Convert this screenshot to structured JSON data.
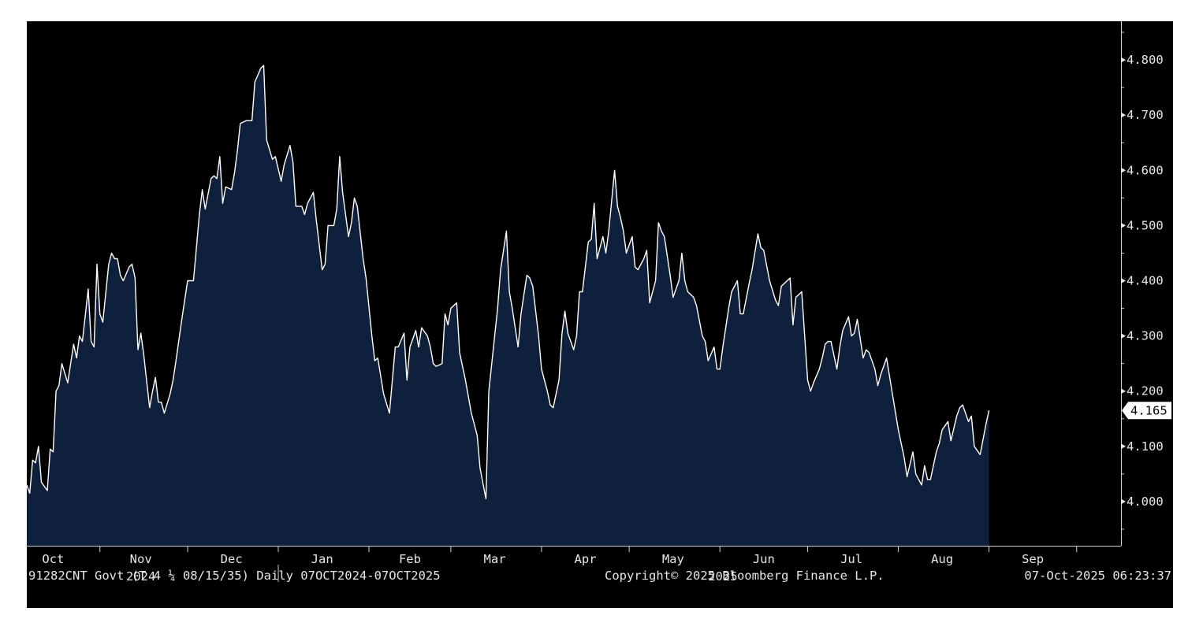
{
  "colors": {
    "background": "#000000",
    "area_fill": "#0f203c",
    "line": "#ffffff",
    "text": "#e6e6e6",
    "marker_bg": "#ffffff",
    "marker_text": "#000000"
  },
  "footer": {
    "security": "91282CNT Govt (T 4 ¼ 08/15/35) Daily 07OCT2024-07OCT2025",
    "copyright": "Copyright© 2025 Bloomberg Finance L.P.",
    "timestamp": "07-Oct-2025 06:23:37"
  },
  "chart_data": {
    "type": "area",
    "title": "",
    "xlabel": "",
    "ylabel": "",
    "ylim": [
      3.92,
      4.87
    ],
    "y_ticks": [
      "4.000",
      "4.100",
      "4.200",
      "4.300",
      "4.400",
      "4.500",
      "4.600",
      "4.700",
      "4.800"
    ],
    "y_tick_values": [
      4.0,
      4.1,
      4.2,
      4.3,
      4.4,
      4.5,
      4.6,
      4.7,
      4.8
    ],
    "x_start": "2024-10-07",
    "x_end": "2025-10-07",
    "month_labels": [
      {
        "label": "Oct",
        "date": "2024-10-16"
      },
      {
        "label": "Nov",
        "date": "2024-11-15"
      },
      {
        "label": "Dec",
        "date": "2024-12-16"
      },
      {
        "label": "Jan",
        "date": "2025-01-16"
      },
      {
        "label": "Feb",
        "date": "2025-02-15"
      },
      {
        "label": "Mar",
        "date": "2025-03-16"
      },
      {
        "label": "Apr",
        "date": "2025-04-16"
      },
      {
        "label": "May",
        "date": "2025-05-16"
      },
      {
        "label": "Jun",
        "date": "2025-06-16"
      },
      {
        "label": "Jul",
        "date": "2025-07-16"
      },
      {
        "label": "Aug",
        "date": "2025-08-16"
      },
      {
        "label": "Sep",
        "date": "2025-09-16"
      }
    ],
    "month_separators": [
      "2024-11-01",
      "2024-12-01",
      "2025-01-01",
      "2025-02-01",
      "2025-03-01",
      "2025-04-01",
      "2025-05-01",
      "2025-06-01",
      "2025-07-01",
      "2025-08-01",
      "2025-09-01",
      "2025-10-01"
    ],
    "year_labels": [
      {
        "label": "2024",
        "date": "2024-11-15"
      },
      {
        "label": "2025",
        "date": "2025-06-02"
      }
    ],
    "year_separator": "2025-01-01",
    "last_value_label": "4.165",
    "last_value": 4.165,
    "series": [
      {
        "points": [
          [
            "2024-10-07",
            4.03
          ],
          [
            "2024-10-08",
            4.015
          ],
          [
            "2024-10-09",
            4.075
          ],
          [
            "2024-10-10",
            4.07
          ],
          [
            "2024-10-11",
            4.1
          ],
          [
            "2024-10-12",
            4.035
          ],
          [
            "2024-10-14",
            4.02
          ],
          [
            "2024-10-15",
            4.095
          ],
          [
            "2024-10-16",
            4.09
          ],
          [
            "2024-10-17",
            4.2
          ],
          [
            "2024-10-18",
            4.21
          ],
          [
            "2024-10-19",
            4.25
          ],
          [
            "2024-10-21",
            4.215
          ],
          [
            "2024-10-22",
            4.25
          ],
          [
            "2024-10-23",
            4.285
          ],
          [
            "2024-10-24",
            4.26
          ],
          [
            "2024-10-25",
            4.3
          ],
          [
            "2024-10-26",
            4.29
          ],
          [
            "2024-10-28",
            4.385
          ],
          [
            "2024-10-29",
            4.29
          ],
          [
            "2024-10-30",
            4.28
          ],
          [
            "2024-10-31",
            4.43
          ],
          [
            "2024-11-01",
            4.34
          ],
          [
            "2024-11-02",
            4.325
          ],
          [
            "2024-11-04",
            4.43
          ],
          [
            "2024-11-05",
            4.45
          ],
          [
            "2024-11-06",
            4.44
          ],
          [
            "2024-11-07",
            4.44
          ],
          [
            "2024-11-08",
            4.41
          ],
          [
            "2024-11-09",
            4.4
          ],
          [
            "2024-11-11",
            4.425
          ],
          [
            "2024-11-12",
            4.43
          ],
          [
            "2024-11-13",
            4.405
          ],
          [
            "2024-11-14",
            4.275
          ],
          [
            "2024-11-15",
            4.305
          ],
          [
            "2024-11-16",
            4.265
          ],
          [
            "2024-11-18",
            4.17
          ],
          [
            "2024-11-19",
            4.2
          ],
          [
            "2024-11-20",
            4.225
          ],
          [
            "2024-11-21",
            4.18
          ],
          [
            "2024-11-22",
            4.18
          ],
          [
            "2024-11-23",
            4.16
          ],
          [
            "2024-11-25",
            4.195
          ],
          [
            "2024-11-26",
            4.22
          ],
          [
            "2024-11-27",
            4.255
          ],
          [
            "2024-11-29",
            4.33
          ],
          [
            "2024-12-01",
            4.4
          ],
          [
            "2024-12-03",
            4.4
          ],
          [
            "2024-12-05",
            4.52
          ],
          [
            "2024-12-06",
            4.565
          ],
          [
            "2024-12-07",
            4.53
          ],
          [
            "2024-12-09",
            4.585
          ],
          [
            "2024-12-10",
            4.59
          ],
          [
            "2024-12-11",
            4.585
          ],
          [
            "2024-12-12",
            4.625
          ],
          [
            "2024-12-13",
            4.54
          ],
          [
            "2024-12-14",
            4.57
          ],
          [
            "2024-12-16",
            4.565
          ],
          [
            "2024-12-17",
            4.595
          ],
          [
            "2024-12-18",
            4.635
          ],
          [
            "2024-12-19",
            4.685
          ],
          [
            "2024-12-21",
            4.69
          ],
          [
            "2024-12-23",
            4.69
          ],
          [
            "2024-12-24",
            4.76
          ],
          [
            "2024-12-26",
            4.785
          ],
          [
            "2024-12-27",
            4.79
          ],
          [
            "2024-12-28",
            4.655
          ],
          [
            "2024-12-30",
            4.62
          ],
          [
            "2024-12-31",
            4.625
          ],
          [
            "2025-01-02",
            4.58
          ],
          [
            "2025-01-03",
            4.61
          ],
          [
            "2025-01-05",
            4.645
          ],
          [
            "2025-01-06",
            4.615
          ],
          [
            "2025-01-07",
            4.535
          ],
          [
            "2025-01-09",
            4.535
          ],
          [
            "2025-01-10",
            4.52
          ],
          [
            "2025-01-11",
            4.54
          ],
          [
            "2025-01-13",
            4.56
          ],
          [
            "2025-01-14",
            4.51
          ],
          [
            "2025-01-16",
            4.42
          ],
          [
            "2025-01-17",
            4.43
          ],
          [
            "2025-01-18",
            4.5
          ],
          [
            "2025-01-20",
            4.5
          ],
          [
            "2025-01-21",
            4.53
          ],
          [
            "2025-01-22",
            4.625
          ],
          [
            "2025-01-23",
            4.56
          ],
          [
            "2025-01-25",
            4.48
          ],
          [
            "2025-01-26",
            4.505
          ],
          [
            "2025-01-27",
            4.55
          ],
          [
            "2025-01-28",
            4.535
          ],
          [
            "2025-01-30",
            4.44
          ],
          [
            "2025-01-31",
            4.405
          ],
          [
            "2025-02-02",
            4.3
          ],
          [
            "2025-02-03",
            4.255
          ],
          [
            "2025-02-04",
            4.26
          ],
          [
            "2025-02-06",
            4.195
          ],
          [
            "2025-02-08",
            4.16
          ],
          [
            "2025-02-09",
            4.22
          ],
          [
            "2025-02-10",
            4.28
          ],
          [
            "2025-02-11",
            4.28
          ],
          [
            "2025-02-13",
            4.305
          ],
          [
            "2025-02-14",
            4.22
          ],
          [
            "2025-02-15",
            4.28
          ],
          [
            "2025-02-17",
            4.31
          ],
          [
            "2025-02-18",
            4.28
          ],
          [
            "2025-02-19",
            4.315
          ],
          [
            "2025-02-21",
            4.3
          ],
          [
            "2025-02-22",
            4.28
          ],
          [
            "2025-02-23",
            4.25
          ],
          [
            "2025-02-24",
            4.245
          ],
          [
            "2025-02-26",
            4.25
          ],
          [
            "2025-02-27",
            4.34
          ],
          [
            "2025-02-28",
            4.32
          ],
          [
            "2025-03-01",
            4.35
          ],
          [
            "2025-03-03",
            4.36
          ],
          [
            "2025-03-04",
            4.27
          ],
          [
            "2025-03-06",
            4.22
          ],
          [
            "2025-03-08",
            4.16
          ],
          [
            "2025-03-10",
            4.12
          ],
          [
            "2025-03-11",
            4.06
          ],
          [
            "2025-03-13",
            4.005
          ],
          [
            "2025-03-14",
            4.2
          ],
          [
            "2025-03-16",
            4.3
          ],
          [
            "2025-03-17",
            4.35
          ],
          [
            "2025-03-18",
            4.42
          ],
          [
            "2025-03-20",
            4.49
          ],
          [
            "2025-03-21",
            4.38
          ],
          [
            "2025-03-22",
            4.35
          ],
          [
            "2025-03-24",
            4.28
          ],
          [
            "2025-03-25",
            4.34
          ],
          [
            "2025-03-27",
            4.41
          ],
          [
            "2025-03-28",
            4.405
          ],
          [
            "2025-03-29",
            4.39
          ],
          [
            "2025-03-31",
            4.3
          ],
          [
            "2025-04-01",
            4.24
          ],
          [
            "2025-04-03",
            4.2
          ],
          [
            "2025-04-04",
            4.175
          ],
          [
            "2025-04-05",
            4.17
          ],
          [
            "2025-04-07",
            4.22
          ],
          [
            "2025-04-08",
            4.305
          ],
          [
            "2025-04-09",
            4.345
          ],
          [
            "2025-04-10",
            4.305
          ],
          [
            "2025-04-12",
            4.275
          ],
          [
            "2025-04-13",
            4.3
          ],
          [
            "2025-04-14",
            4.38
          ],
          [
            "2025-04-15",
            4.38
          ],
          [
            "2025-04-17",
            4.47
          ],
          [
            "2025-04-18",
            4.475
          ],
          [
            "2025-04-19",
            4.54
          ],
          [
            "2025-04-20",
            4.44
          ],
          [
            "2025-04-22",
            4.48
          ],
          [
            "2025-04-23",
            4.45
          ],
          [
            "2025-04-24",
            4.49
          ],
          [
            "2025-04-26",
            4.6
          ],
          [
            "2025-04-27",
            4.535
          ],
          [
            "2025-04-28",
            4.515
          ],
          [
            "2025-04-29",
            4.49
          ],
          [
            "2025-04-30",
            4.45
          ],
          [
            "2025-05-02",
            4.48
          ],
          [
            "2025-05-03",
            4.425
          ],
          [
            "2025-05-04",
            4.42
          ],
          [
            "2025-05-06",
            4.44
          ],
          [
            "2025-05-07",
            4.455
          ],
          [
            "2025-05-08",
            4.36
          ],
          [
            "2025-05-10",
            4.4
          ],
          [
            "2025-05-11",
            4.505
          ],
          [
            "2025-05-12",
            4.49
          ],
          [
            "2025-05-13",
            4.48
          ],
          [
            "2025-05-15",
            4.41
          ],
          [
            "2025-05-16",
            4.37
          ],
          [
            "2025-05-18",
            4.4
          ],
          [
            "2025-05-19",
            4.45
          ],
          [
            "2025-05-20",
            4.4
          ],
          [
            "2025-05-21",
            4.38
          ],
          [
            "2025-05-23",
            4.37
          ],
          [
            "2025-05-24",
            4.355
          ],
          [
            "2025-05-26",
            4.3
          ],
          [
            "2025-05-27",
            4.29
          ],
          [
            "2025-05-28",
            4.255
          ],
          [
            "2025-05-30",
            4.28
          ],
          [
            "2025-05-31",
            4.24
          ],
          [
            "2025-06-01",
            4.24
          ],
          [
            "2025-06-02",
            4.28
          ],
          [
            "2025-06-04",
            4.35
          ],
          [
            "2025-06-05",
            4.38
          ],
          [
            "2025-06-07",
            4.4
          ],
          [
            "2025-06-08",
            4.34
          ],
          [
            "2025-06-09",
            4.34
          ],
          [
            "2025-06-11",
            4.395
          ],
          [
            "2025-06-12",
            4.42
          ],
          [
            "2025-06-14",
            4.485
          ],
          [
            "2025-06-15",
            4.46
          ],
          [
            "2025-06-16",
            4.455
          ],
          [
            "2025-06-18",
            4.4
          ],
          [
            "2025-06-20",
            4.365
          ],
          [
            "2025-06-21",
            4.355
          ],
          [
            "2025-06-22",
            4.39
          ],
          [
            "2025-06-24",
            4.4
          ],
          [
            "2025-06-25",
            4.405
          ],
          [
            "2025-06-26",
            4.32
          ],
          [
            "2025-06-27",
            4.37
          ],
          [
            "2025-06-29",
            4.38
          ],
          [
            "2025-07-01",
            4.22
          ],
          [
            "2025-07-02",
            4.2
          ],
          [
            "2025-07-03",
            4.215
          ],
          [
            "2025-07-05",
            4.24
          ],
          [
            "2025-07-06",
            4.26
          ],
          [
            "2025-07-07",
            4.285
          ],
          [
            "2025-07-08",
            4.29
          ],
          [
            "2025-07-09",
            4.29
          ],
          [
            "2025-07-11",
            4.24
          ],
          [
            "2025-07-12",
            4.28
          ],
          [
            "2025-07-13",
            4.31
          ],
          [
            "2025-07-15",
            4.335
          ],
          [
            "2025-07-16",
            4.3
          ],
          [
            "2025-07-17",
            4.305
          ],
          [
            "2025-07-18",
            4.33
          ],
          [
            "2025-07-20",
            4.26
          ],
          [
            "2025-07-21",
            4.275
          ],
          [
            "2025-07-22",
            4.27
          ],
          [
            "2025-07-24",
            4.24
          ],
          [
            "2025-07-25",
            4.21
          ],
          [
            "2025-07-26",
            4.23
          ],
          [
            "2025-07-28",
            4.26
          ],
          [
            "2025-07-30",
            4.195
          ],
          [
            "2025-08-01",
            4.13
          ],
          [
            "2025-08-03",
            4.08
          ],
          [
            "2025-08-04",
            4.045
          ],
          [
            "2025-08-06",
            4.09
          ],
          [
            "2025-08-07",
            4.05
          ],
          [
            "2025-08-09",
            4.03
          ],
          [
            "2025-08-10",
            4.065
          ],
          [
            "2025-08-11",
            4.04
          ],
          [
            "2025-08-12",
            4.04
          ],
          [
            "2025-08-14",
            4.09
          ],
          [
            "2025-08-15",
            4.105
          ],
          [
            "2025-08-16",
            4.13
          ],
          [
            "2025-08-18",
            4.145
          ],
          [
            "2025-08-19",
            4.11
          ],
          [
            "2025-08-21",
            4.155
          ],
          [
            "2025-08-22",
            4.17
          ],
          [
            "2025-08-23",
            4.175
          ],
          [
            "2025-08-25",
            4.145
          ],
          [
            "2025-08-26",
            4.155
          ],
          [
            "2025-08-27",
            4.1
          ],
          [
            "2025-08-29",
            4.085
          ],
          [
            "2025-08-31",
            4.14
          ],
          [
            "2025-09-01",
            4.165
          ]
        ]
      }
    ]
  }
}
